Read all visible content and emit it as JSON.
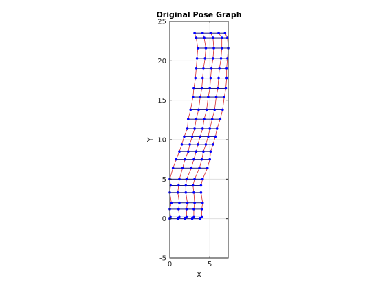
{
  "chart_data": {
    "type": "scatter",
    "title": "Original Pose Graph",
    "xlabel": "X",
    "ylabel": "Y",
    "xlim": [
      0,
      7.3
    ],
    "ylim": [
      -5,
      25
    ],
    "x_ticks": [
      0,
      5
    ],
    "y_ticks": [
      -5,
      0,
      5,
      10,
      15,
      20,
      25
    ],
    "x_tick_labels": [
      "0",
      "5"
    ],
    "y_tick_labels": [
      "-5",
      "0",
      "5",
      "10",
      "15",
      "20",
      "25"
    ],
    "grid": true,
    "node_color": "#0000ff",
    "edge_color": "#d62728",
    "odometry_edge_color": "#1a1a80",
    "rows": [
      {
        "y": 0.0,
        "x": [
          0.0,
          1.0,
          1.9,
          2.8,
          3.8
        ]
      },
      {
        "y": 0.2,
        "x": [
          0.1,
          1.2,
          2.1,
          3.0,
          4.0
        ]
      },
      {
        "y": 1.2,
        "x": [
          0.0,
          1.1,
          2.1,
          3.0,
          4.0
        ]
      },
      {
        "y": 2.0,
        "x": [
          0.2,
          1.2,
          2.2,
          3.1,
          4.1
        ]
      },
      {
        "y": 3.3,
        "x": [
          0.0,
          1.0,
          2.0,
          3.0,
          3.9
        ]
      },
      {
        "y": 4.2,
        "x": [
          0.1,
          1.1,
          2.0,
          2.9,
          3.9
        ]
      },
      {
        "y": 5.0,
        "x": [
          0.0,
          1.2,
          2.1,
          3.1,
          4.1
        ]
      },
      {
        "y": 6.4,
        "x": [
          0.4,
          1.6,
          2.7,
          3.7,
          4.7
        ]
      },
      {
        "y": 7.5,
        "x": [
          0.8,
          1.9,
          3.0,
          4.0,
          5.0
        ]
      },
      {
        "y": 8.5,
        "x": [
          1.2,
          2.3,
          3.3,
          4.2,
          5.1
        ]
      },
      {
        "y": 9.4,
        "x": [
          1.5,
          2.5,
          3.5,
          4.5,
          5.4
        ]
      },
      {
        "y": 10.4,
        "x": [
          1.8,
          2.8,
          3.8,
          4.8,
          5.7
        ]
      },
      {
        "y": 11.4,
        "x": [
          2.2,
          3.1,
          4.1,
          5.0,
          5.9
        ]
      },
      {
        "y": 12.6,
        "x": [
          2.3,
          3.3,
          4.3,
          5.3,
          6.3
        ]
      },
      {
        "y": 13.8,
        "x": [
          2.6,
          3.6,
          4.6,
          5.6,
          6.6
        ]
      },
      {
        "y": 15.4,
        "x": [
          2.9,
          3.8,
          4.8,
          5.8,
          6.8
        ]
      },
      {
        "y": 16.5,
        "x": [
          3.0,
          4.0,
          5.0,
          6.0,
          7.0
        ]
      },
      {
        "y": 17.8,
        "x": [
          3.2,
          4.1,
          5.1,
          6.1,
          7.1
        ]
      },
      {
        "y": 19.0,
        "x": [
          3.3,
          4.2,
          5.2,
          6.2,
          7.1
        ]
      },
      {
        "y": 20.3,
        "x": [
          3.4,
          4.4,
          5.4,
          6.4,
          7.2
        ]
      },
      {
        "y": 21.6,
        "x": [
          3.5,
          4.5,
          5.5,
          6.5,
          7.3
        ]
      },
      {
        "y": 22.9,
        "x": [
          3.3,
          4.3,
          5.4,
          6.5,
          7.2
        ]
      },
      {
        "y": 23.5,
        "x": [
          3.1,
          4.1,
          5.1,
          6.1,
          6.9
        ]
      }
    ]
  }
}
